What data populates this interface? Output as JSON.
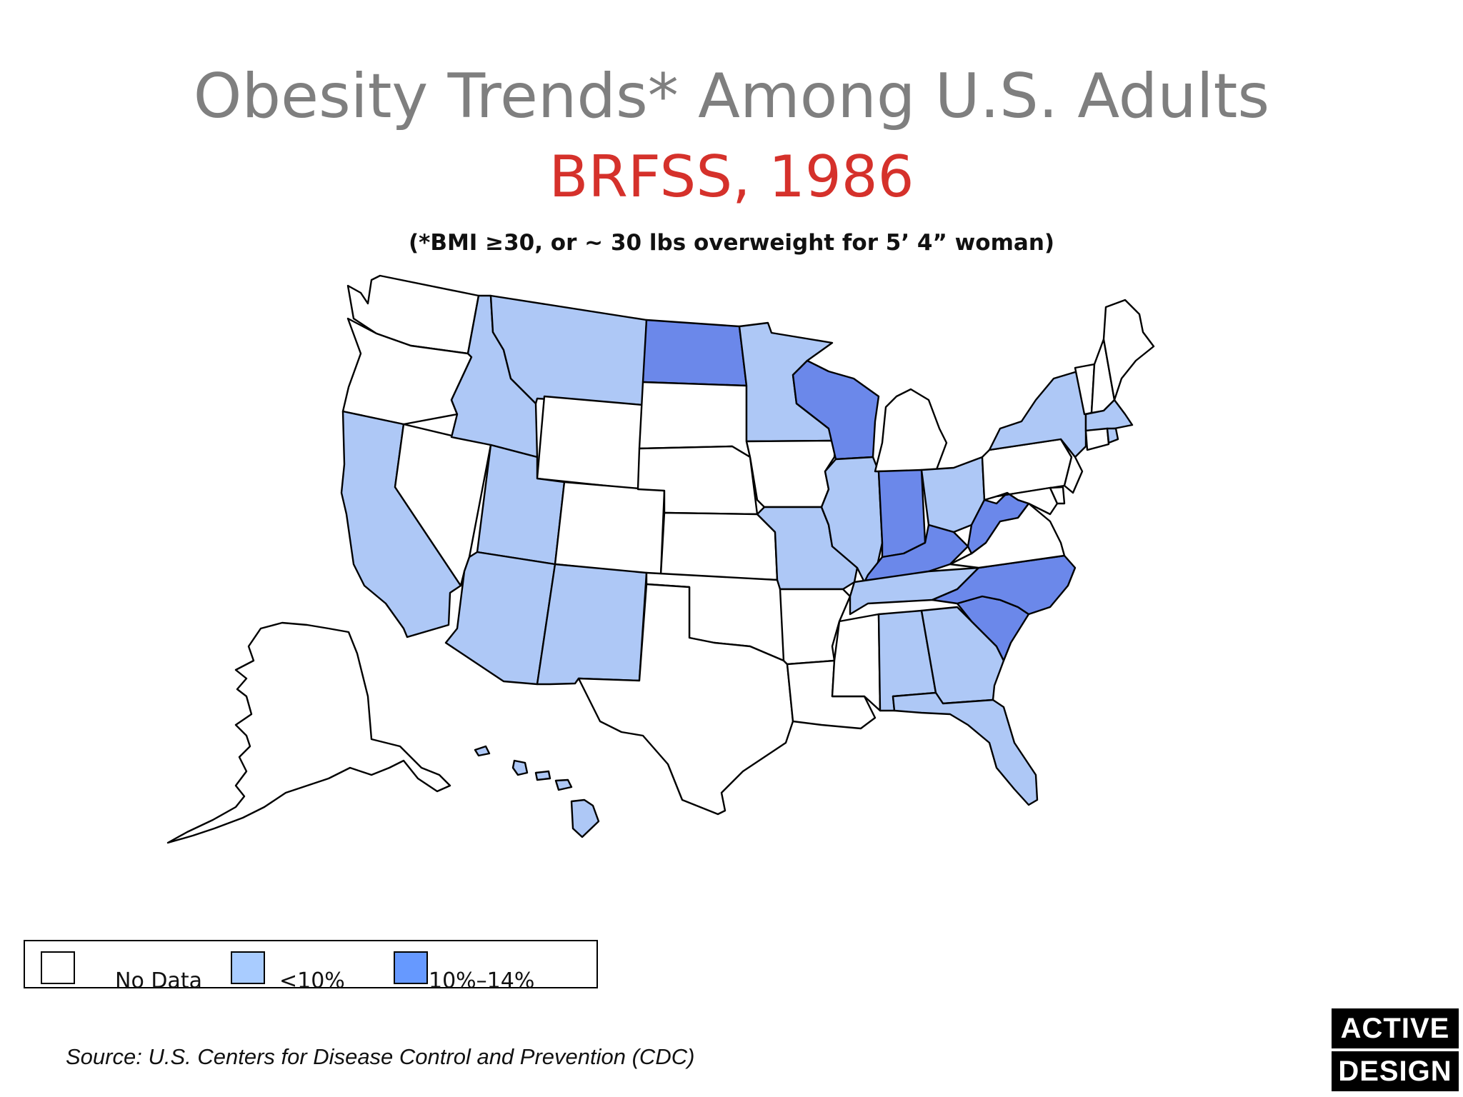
{
  "title": "Obesity Trends* Among U.S. Adults",
  "subtitle": "BRFSS, 1986",
  "note": "(*BMI ≥30, or ~ 30 lbs overweight for 5’ 4” woman)",
  "colors": {
    "no_data": "#ffffff",
    "lt10": "#aec8f6",
    "p10_14": "#6b88ea"
  },
  "legend": {
    "items": [
      {
        "label": "No Data",
        "color": "#ffffff"
      },
      {
        "label": "<10%",
        "color": "#a9ccff"
      },
      {
        "label": "10%–14%",
        "color": "#6699ff"
      }
    ]
  },
  "map_data": {
    "WA": "no_data",
    "OR": "no_data",
    "CA": "lt10",
    "NV": "no_data",
    "ID": "lt10",
    "MT": "lt10",
    "WY": "no_data",
    "UT": "lt10",
    "AZ": "lt10",
    "CO": "no_data",
    "NM": "lt10",
    "ND": "p10_14",
    "SD": "no_data",
    "NE": "no_data",
    "KS": "no_data",
    "OK": "no_data",
    "TX": "no_data",
    "MN": "lt10",
    "IA": "no_data",
    "MO": "lt10",
    "AR": "no_data",
    "LA": "no_data",
    "WI": "p10_14",
    "IL": "lt10",
    "MI": "no_data",
    "IN": "p10_14",
    "OH": "lt10",
    "KY": "p10_14",
    "TN": "lt10",
    "MS": "no_data",
    "AL": "lt10",
    "GA": "lt10",
    "FL": "lt10",
    "SC": "p10_14",
    "NC": "p10_14",
    "VA": "no_data",
    "WV": "p10_14",
    "PA": "no_data",
    "NY": "lt10",
    "VT": "no_data",
    "NH": "no_data",
    "ME": "no_data",
    "MA": "lt10",
    "CT": "no_data",
    "RI": "lt10",
    "NJ": "no_data",
    "DE": "no_data",
    "MD": "no_data",
    "AK": "no_data",
    "HI": "lt10"
  },
  "source": "Source: U.S. Centers for Disease Control and Prevention (CDC)",
  "logo": {
    "line1": "ACTIVE",
    "line2": "DESIGN"
  }
}
